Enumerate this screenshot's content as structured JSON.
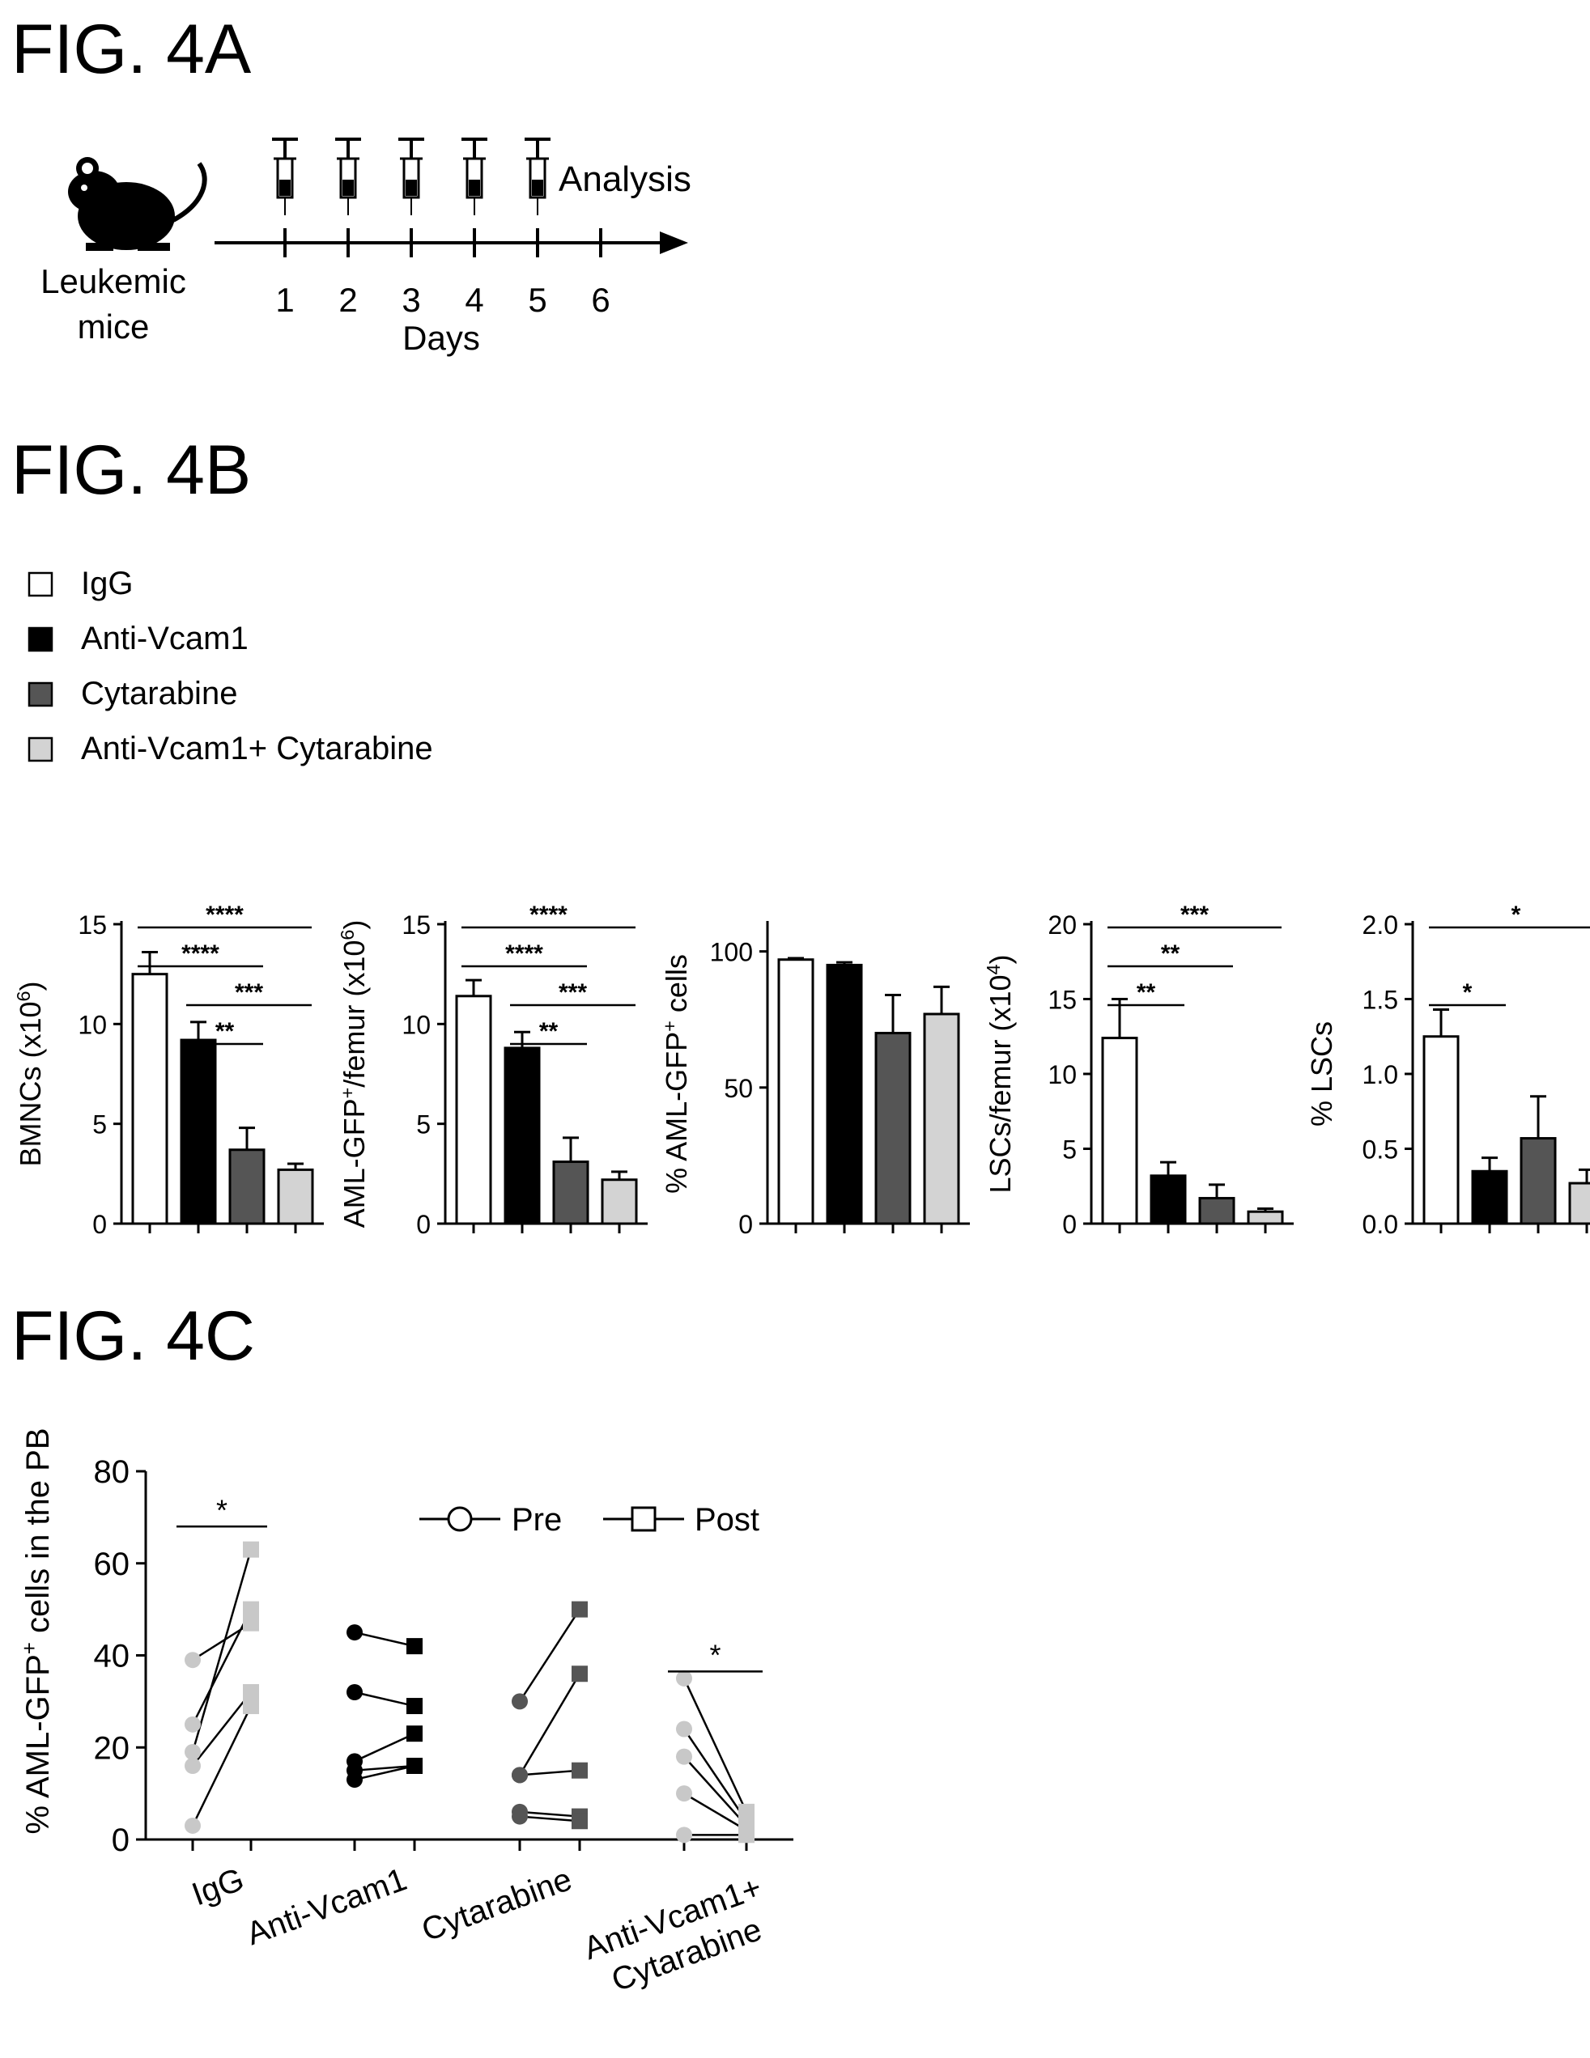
{
  "figure_4a": {
    "label": "FIG. 4A",
    "subject_label_line1": "Leukemic",
    "subject_label_line2": "mice",
    "analysis_label": "Analysis",
    "days": [
      "1",
      "2",
      "3",
      "4",
      "5",
      "6"
    ],
    "days_label": "Days",
    "icons": {
      "subject": "mouse-icon",
      "injection": "syringe-icon"
    }
  },
  "figure_4b": {
    "label": "FIG. 4B",
    "legend": [
      {
        "name": "IgG",
        "color": "#ffffff"
      },
      {
        "name": "Anti-Vcam1",
        "color": "#000000"
      },
      {
        "name": "Cytarabine",
        "color": "#555555"
      },
      {
        "name": "Anti-Vcam1+ Cytarabine",
        "color": "#d3d3d3"
      }
    ]
  },
  "figure_4c": {
    "label": "FIG. 4C"
  },
  "chart_data": [
    {
      "type": "bar",
      "ylabel_main": "BMNCs (x10",
      "ylabel_sup": "6",
      "ylabel_end": ")",
      "ylim": [
        0,
        15
      ],
      "yticks": [
        "0",
        "5",
        "10",
        "15"
      ],
      "values": [
        12.5,
        9.2,
        3.7,
        2.7
      ],
      "errors": [
        1.1,
        0.9,
        1.1,
        0.3
      ],
      "significance": [
        {
          "from": 0,
          "to": 3,
          "label": "****"
        },
        {
          "from": 0,
          "to": 2,
          "label": "****"
        },
        {
          "from": 1,
          "to": 3,
          "label": "***"
        },
        {
          "from": 1,
          "to": 2,
          "label": "**"
        }
      ]
    },
    {
      "type": "bar",
      "ylabel_main": "AML-GFP",
      "ylabel_sup": "+",
      "ylabel_end": "/femur (x10",
      "ylabel_sup2": "6",
      "ylabel_end2": ")",
      "ylim": [
        0,
        15
      ],
      "yticks": [
        "0",
        "5",
        "10",
        "15"
      ],
      "values": [
        11.4,
        8.8,
        3.1,
        2.2
      ],
      "errors": [
        0.8,
        0.8,
        1.2,
        0.4
      ],
      "significance": [
        {
          "from": 0,
          "to": 3,
          "label": "****"
        },
        {
          "from": 0,
          "to": 2,
          "label": "****"
        },
        {
          "from": 1,
          "to": 3,
          "label": "***"
        },
        {
          "from": 1,
          "to": 2,
          "label": "**"
        }
      ]
    },
    {
      "type": "bar",
      "ylabel_main": "% AML-GFP",
      "ylabel_sup": "+",
      "ylabel_end": " cells",
      "ylim": [
        0,
        110
      ],
      "yticks": [
        "0",
        "50",
        "100"
      ],
      "values": [
        97,
        95,
        70,
        77
      ],
      "errors": [
        0.5,
        1,
        14,
        10
      ],
      "significance": []
    },
    {
      "type": "bar",
      "ylabel_main": "LSCs/femur (x10",
      "ylabel_sup": "4",
      "ylabel_end": ")",
      "ylim": [
        0,
        20
      ],
      "yticks": [
        "0",
        "5",
        "10",
        "15",
        "20"
      ],
      "values": [
        12.4,
        3.2,
        1.7,
        0.8
      ],
      "errors": [
        2.6,
        0.9,
        0.9,
        0.2
      ],
      "significance": [
        {
          "from": 0,
          "to": 3,
          "label": "***"
        },
        {
          "from": 0,
          "to": 2,
          "label": "**"
        },
        {
          "from": 0,
          "to": 1,
          "label": "**"
        }
      ]
    },
    {
      "type": "bar",
      "ylabel_main": "% LSCs",
      "ylim": [
        0,
        2.0
      ],
      "yticks": [
        "0.0",
        "0.5",
        "1.0",
        "1.5",
        "2.0"
      ],
      "values": [
        1.25,
        0.35,
        0.57,
        0.27
      ],
      "errors": [
        0.18,
        0.09,
        0.28,
        0.09
      ],
      "significance": [
        {
          "from": 0,
          "to": 3,
          "label": "*"
        },
        {
          "from": 0,
          "to": 1,
          "label": "*"
        }
      ]
    },
    {
      "type": "scatter",
      "ylabel_main": "% AML-GFP",
      "ylabel_sup": "+",
      "ylabel_end": " cells in the PB",
      "ylim": [
        0,
        80
      ],
      "yticks": [
        "0",
        "20",
        "40",
        "60",
        "80"
      ],
      "legend": [
        "Pre",
        "Post"
      ],
      "groups": [
        {
          "name": "IgG",
          "color": "#c8c8c8",
          "pre": [
            39,
            25,
            19,
            16,
            3
          ],
          "post": [
            47,
            50,
            63,
            32,
            29
          ],
          "significance": "*"
        },
        {
          "name": "Anti-Vcam1",
          "color": "#000000",
          "pre": [
            45,
            32,
            17,
            15,
            13
          ],
          "post": [
            42,
            29,
            23,
            16,
            16
          ],
          "significance": ""
        },
        {
          "name": "Cytarabine",
          "color": "#555555",
          "pre": [
            30,
            14,
            14,
            6,
            5
          ],
          "post": [
            50,
            36,
            15,
            5,
            4
          ],
          "significance": ""
        },
        {
          "name": "Anti-Vcam1+\nCytarabine",
          "name_line1": "Anti-Vcam1+",
          "name_line2": "Cytarabine",
          "color": "#c8c8c8",
          "pre": [
            35,
            24,
            18,
            10,
            1
          ],
          "post": [
            6,
            4,
            3,
            2,
            1
          ],
          "significance": "*"
        }
      ]
    }
  ]
}
